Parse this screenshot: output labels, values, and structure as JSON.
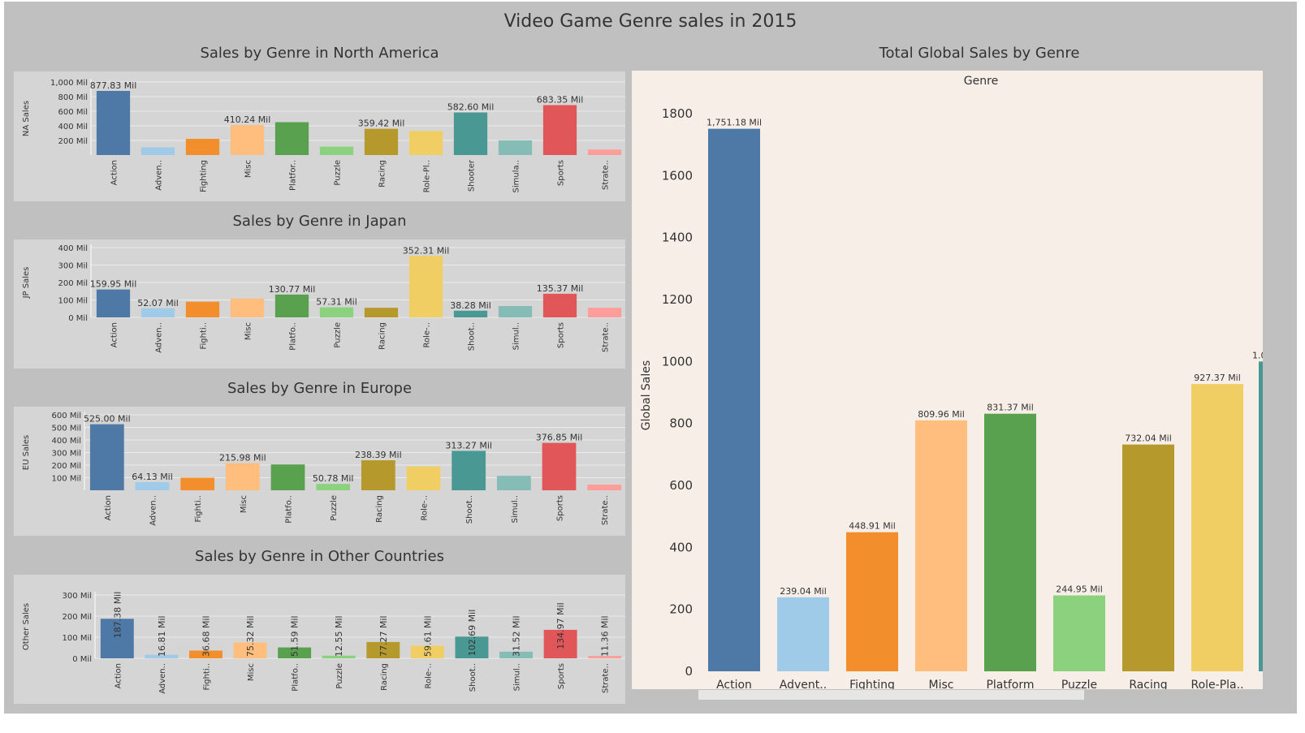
{
  "dashboard_title": "Video Game Genre sales in 2015",
  "chart_data": [
    {
      "id": "na",
      "type": "bar",
      "title": "Sales by Genre in North America",
      "ylabel": "NA Sales",
      "ylim": [
        0,
        1000
      ],
      "yticks": [
        200,
        400,
        600,
        800,
        1000
      ],
      "ytick_labels": [
        "200 Mil",
        "400 Mil",
        "600 Mil",
        "800 Mil",
        "1,000 Mil"
      ],
      "categories": [
        "Action",
        "Adven..",
        "Fighting",
        "Misc",
        "Platfor..",
        "Puzzle",
        "Racing",
        "Role-Pl..",
        "Shooter",
        "Simula..",
        "Sports",
        "Strate.."
      ],
      "values": [
        877.83,
        105,
        222,
        410.24,
        450,
        115,
        359.42,
        330,
        582.6,
        200,
        683.35,
        75
      ],
      "data_labels": [
        "877.83 Mil",
        "",
        "",
        "410.24 Mil",
        "",
        "",
        "359.42 Mil",
        "",
        "582.60 Mil",
        "",
        "683.35 Mil",
        ""
      ]
    },
    {
      "id": "jp",
      "type": "bar",
      "title": "Sales by Genre in Japan",
      "ylabel": "JP Sales",
      "ylim": [
        0,
        400
      ],
      "yticks": [
        0,
        100,
        200,
        300,
        400
      ],
      "ytick_labels": [
        "0 Mil",
        "100 Mil",
        "200 Mil",
        "300 Mil",
        "400 Mil"
      ],
      "categories": [
        "Action",
        "Adven..",
        "Fighti..",
        "Misc",
        "Platfo..",
        "Puzzle",
        "Racing",
        "Role-..",
        "Shoot..",
        "Simul..",
        "Sports",
        "Strate.."
      ],
      "values": [
        159.95,
        52.07,
        90,
        108,
        130.77,
        57.31,
        55,
        352.31,
        38.28,
        65,
        135.37,
        55
      ],
      "data_labels": [
        "159.95 Mil",
        "52.07 Mil",
        "",
        "",
        "130.77 Mil",
        "57.31 Mil",
        "",
        "352.31 Mil",
        "38.28 Mil",
        "",
        "135.37 Mil",
        ""
      ]
    },
    {
      "id": "eu",
      "type": "bar",
      "title": "Sales by Genre in Europe",
      "ylabel": "EU Sales",
      "ylim": [
        0,
        600
      ],
      "yticks": [
        100,
        200,
        300,
        400,
        500,
        600
      ],
      "ytick_labels": [
        "100 Mil",
        "200 Mil",
        "300 Mil",
        "400 Mil",
        "500 Mil",
        "600 Mil"
      ],
      "categories": [
        "Action",
        "Adven..",
        "Fighti..",
        "Misc",
        "Platfo..",
        "Puzzle",
        "Racing",
        "Role-..",
        "Shoot..",
        "Simul..",
        "Sports",
        "Strate.."
      ],
      "values": [
        525.0,
        64.13,
        100,
        215.98,
        205,
        50.78,
        238.39,
        190,
        313.27,
        115,
        376.85,
        45
      ],
      "data_labels": [
        "525.00 Mil",
        "64.13 Mil",
        "",
        "215.98 Mil",
        "",
        "50.78 Mil",
        "238.39 Mil",
        "",
        "313.27 Mil",
        "",
        "376.85 Mil",
        ""
      ]
    },
    {
      "id": "other",
      "type": "bar",
      "title": "Sales by Genre in Other Countries",
      "ylabel": "Other Sales",
      "ylim": [
        0,
        300
      ],
      "yticks": [
        0,
        100,
        200,
        300
      ],
      "ytick_labels": [
        "0 Mil",
        "100 Mil",
        "200 Mil",
        "300 Mil"
      ],
      "categories": [
        "Action",
        "Adven..",
        "Fighti..",
        "Misc",
        "Platfo..",
        "Puzzle",
        "Racing",
        "Role-..",
        "Shoot..",
        "Simul..",
        "Sports",
        "Strate.."
      ],
      "values": [
        187.38,
        16.81,
        36.68,
        75.32,
        51.59,
        12.55,
        77.27,
        59.61,
        102.69,
        31.52,
        134.97,
        11.36
      ],
      "data_labels": [
        "187.38 Mil",
        "16.81 Mil",
        "36.68 Mil",
        "75.32 Mil",
        "51.59 Mil",
        "12.55 Mil",
        "77.27 Mil",
        "59.61 Mil",
        "102.69 Mil",
        "31.52 Mil",
        "134.97 Mil",
        "11.36 Mil"
      ],
      "vertical_labels": true
    },
    {
      "id": "global",
      "type": "bar",
      "title": "Total Global Sales by Genre",
      "header": "Genre",
      "ylabel": "Global Sales",
      "ylim": [
        0,
        1800
      ],
      "yticks": [
        0,
        200,
        400,
        600,
        800,
        1000,
        1200,
        1400,
        1600,
        1800
      ],
      "ytick_labels": [
        "0",
        "200",
        "400",
        "600",
        "800",
        "1000",
        "1200",
        "1400",
        "1600",
        "1800"
      ],
      "categories": [
        "Action",
        "Advent..",
        "Fighting",
        "Misc",
        "Platform",
        "Puzzle",
        "Racing",
        "Role-Pla.."
      ],
      "values": [
        1751.18,
        239.04,
        448.91,
        809.96,
        831.37,
        244.95,
        732.04,
        927.37
      ],
      "data_labels": [
        "1,751.18 Mil",
        "239.04 Mil",
        "448.91 Mil",
        "809.96 Mil",
        "831.37 Mil",
        "244.95 Mil",
        "732.04 Mil",
        "927.37 Mil"
      ],
      "partial_bar_label": "1.0"
    }
  ],
  "colors": [
    "#4e79a7",
    "#a0cbe8",
    "#f28e2b",
    "#ffbe7d",
    "#59a14f",
    "#8cd17d",
    "#b6992d",
    "#f1ce63",
    "#499894",
    "#86bcb6",
    "#e15759",
    "#ff9d9a"
  ]
}
